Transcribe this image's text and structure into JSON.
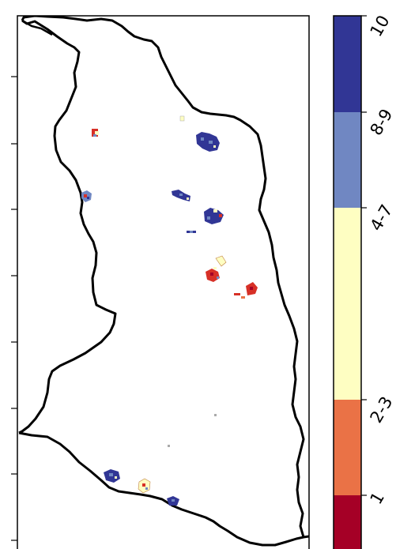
{
  "map": {
    "type": "choropleth-raster",
    "region_border_color": "#000000",
    "background_color": "#ffffff",
    "y_axis_tick_count": 8
  },
  "colorbar": {
    "classes": [
      {
        "label": "1",
        "color": "#a50026"
      },
      {
        "label": "2-3",
        "color": "#ea7246"
      },
      {
        "label": "4-7",
        "color": "#fefec2"
      },
      {
        "label": "8-9",
        "color": "#7087c2"
      },
      {
        "label": "10",
        "color": "#313695"
      }
    ],
    "orientation": "vertical",
    "tick_label_rotation": "-60 degrees"
  }
}
